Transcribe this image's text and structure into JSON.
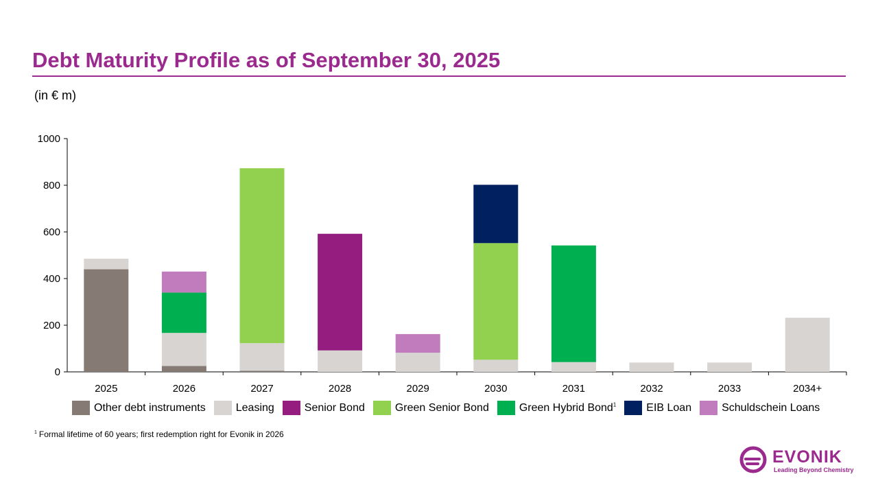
{
  "title": "Debt Maturity Profile as of September 30, 2025",
  "unit_label": "(in € m)",
  "footnote": {
    "marker": "1",
    "text": "Formal lifetime of 60 years; first redemption right for Evonik in 2026"
  },
  "logo": {
    "icon": "evonik-logo-icon",
    "wordmark": "EVONIK",
    "tagline": "Leading Beyond Chemistry"
  },
  "chart_data": {
    "type": "bar",
    "stacked": true,
    "categories": [
      "2025",
      "2026",
      "2027",
      "2028",
      "2029",
      "2030",
      "2031",
      "2032",
      "2033",
      "2034+"
    ],
    "ylim": [
      0,
      1000
    ],
    "yticks": [
      0,
      200,
      400,
      600,
      800,
      1000
    ],
    "legend_position": "bottom",
    "series": [
      {
        "name": "Other debt instruments",
        "color": "#857b74",
        "values": [
          440,
          25,
          5,
          0,
          0,
          0,
          0,
          0,
          0,
          0
        ]
      },
      {
        "name": "Leasing",
        "color": "#d8d4d2",
        "values": [
          45,
          142,
          118,
          92,
          82,
          52,
          42,
          40,
          40,
          232
        ]
      },
      {
        "name": "Senior Bond",
        "color": "#961d80",
        "values": [
          0,
          0,
          0,
          500,
          0,
          0,
          0,
          0,
          0,
          0
        ]
      },
      {
        "name": "Green Senior Bond",
        "color": "#92d050",
        "values": [
          0,
          0,
          750,
          0,
          0,
          500,
          0,
          0,
          0,
          0
        ]
      },
      {
        "name": "Green Hybrid Bond",
        "color": "#00b050",
        "footnote_ref": "1",
        "values": [
          0,
          173,
          0,
          0,
          0,
          0,
          500,
          0,
          0,
          0
        ]
      },
      {
        "name": "EIB Loan",
        "color": "#002060",
        "values": [
          0,
          0,
          0,
          0,
          0,
          250,
          0,
          0,
          0,
          0
        ]
      },
      {
        "name": "Schuldschein Loans",
        "color": "#c07cbd",
        "values": [
          0,
          90,
          0,
          0,
          80,
          0,
          0,
          0,
          0,
          0
        ]
      }
    ]
  }
}
